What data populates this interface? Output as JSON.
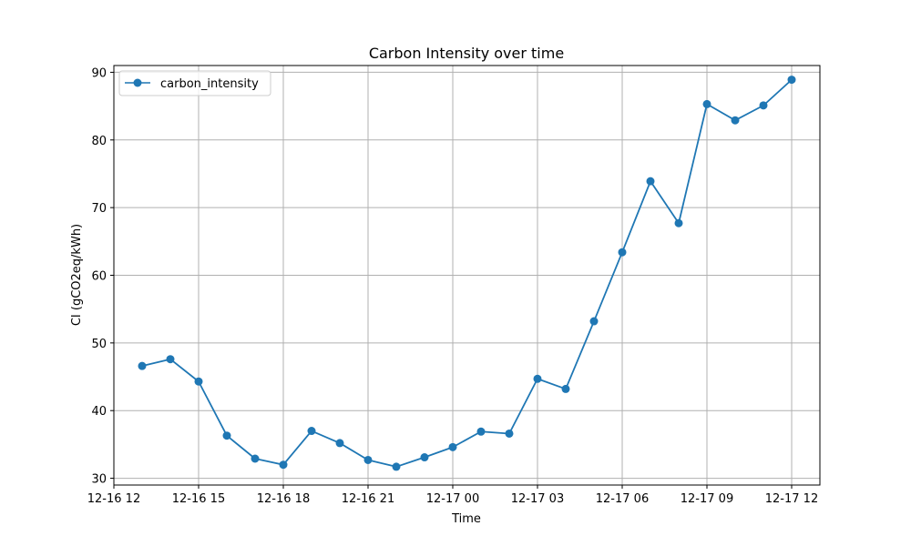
{
  "chart_data": {
    "type": "line",
    "title": "Carbon Intensity over time",
    "xlabel": "Time",
    "ylabel": "CI (gCO2eq/kWh)",
    "x_type": "datetime",
    "x": [
      "2021-12-16 13:00",
      "2021-12-16 14:00",
      "2021-12-16 15:00",
      "2021-12-16 16:00",
      "2021-12-16 17:00",
      "2021-12-16 18:00",
      "2021-12-16 19:00",
      "2021-12-16 20:00",
      "2021-12-16 21:00",
      "2021-12-16 22:00",
      "2021-12-16 23:00",
      "2021-12-17 00:00",
      "2021-12-17 01:00",
      "2021-12-17 02:00",
      "2021-12-17 03:00",
      "2021-12-17 04:00",
      "2021-12-17 05:00",
      "2021-12-17 06:00",
      "2021-12-17 07:00",
      "2021-12-17 08:00",
      "2021-12-17 09:00",
      "2021-12-17 10:00",
      "2021-12-17 11:00",
      "2021-12-17 12:00"
    ],
    "series": [
      {
        "name": "carbon_intensity",
        "color": "#1f77b4",
        "values": [
          46.6,
          47.6,
          44.3,
          36.3,
          32.9,
          32.0,
          37.0,
          35.2,
          32.7,
          31.7,
          33.1,
          34.6,
          36.9,
          36.6,
          44.7,
          43.2,
          53.2,
          63.4,
          73.9,
          67.7,
          85.3,
          82.9,
          85.1,
          88.9
        ]
      }
    ],
    "xlim": [
      "2021-12-16 12:00",
      "2021-12-17 13:00"
    ],
    "ylim": [
      29,
      91
    ],
    "xticks": [
      "2021-12-16 12:00",
      "2021-12-16 15:00",
      "2021-12-16 18:00",
      "2021-12-16 21:00",
      "2021-12-17 00:00",
      "2021-12-17 03:00",
      "2021-12-17 06:00",
      "2021-12-17 09:00",
      "2021-12-17 12:00"
    ],
    "xtick_labels": [
      "12-16 12",
      "12-16 15",
      "12-16 18",
      "12-16 21",
      "12-17 00",
      "12-17 03",
      "12-17 06",
      "12-17 09",
      "12-17 12"
    ],
    "yticks": [
      30,
      40,
      50,
      60,
      70,
      80,
      90
    ],
    "grid": true,
    "legend_position": "top-left"
  }
}
